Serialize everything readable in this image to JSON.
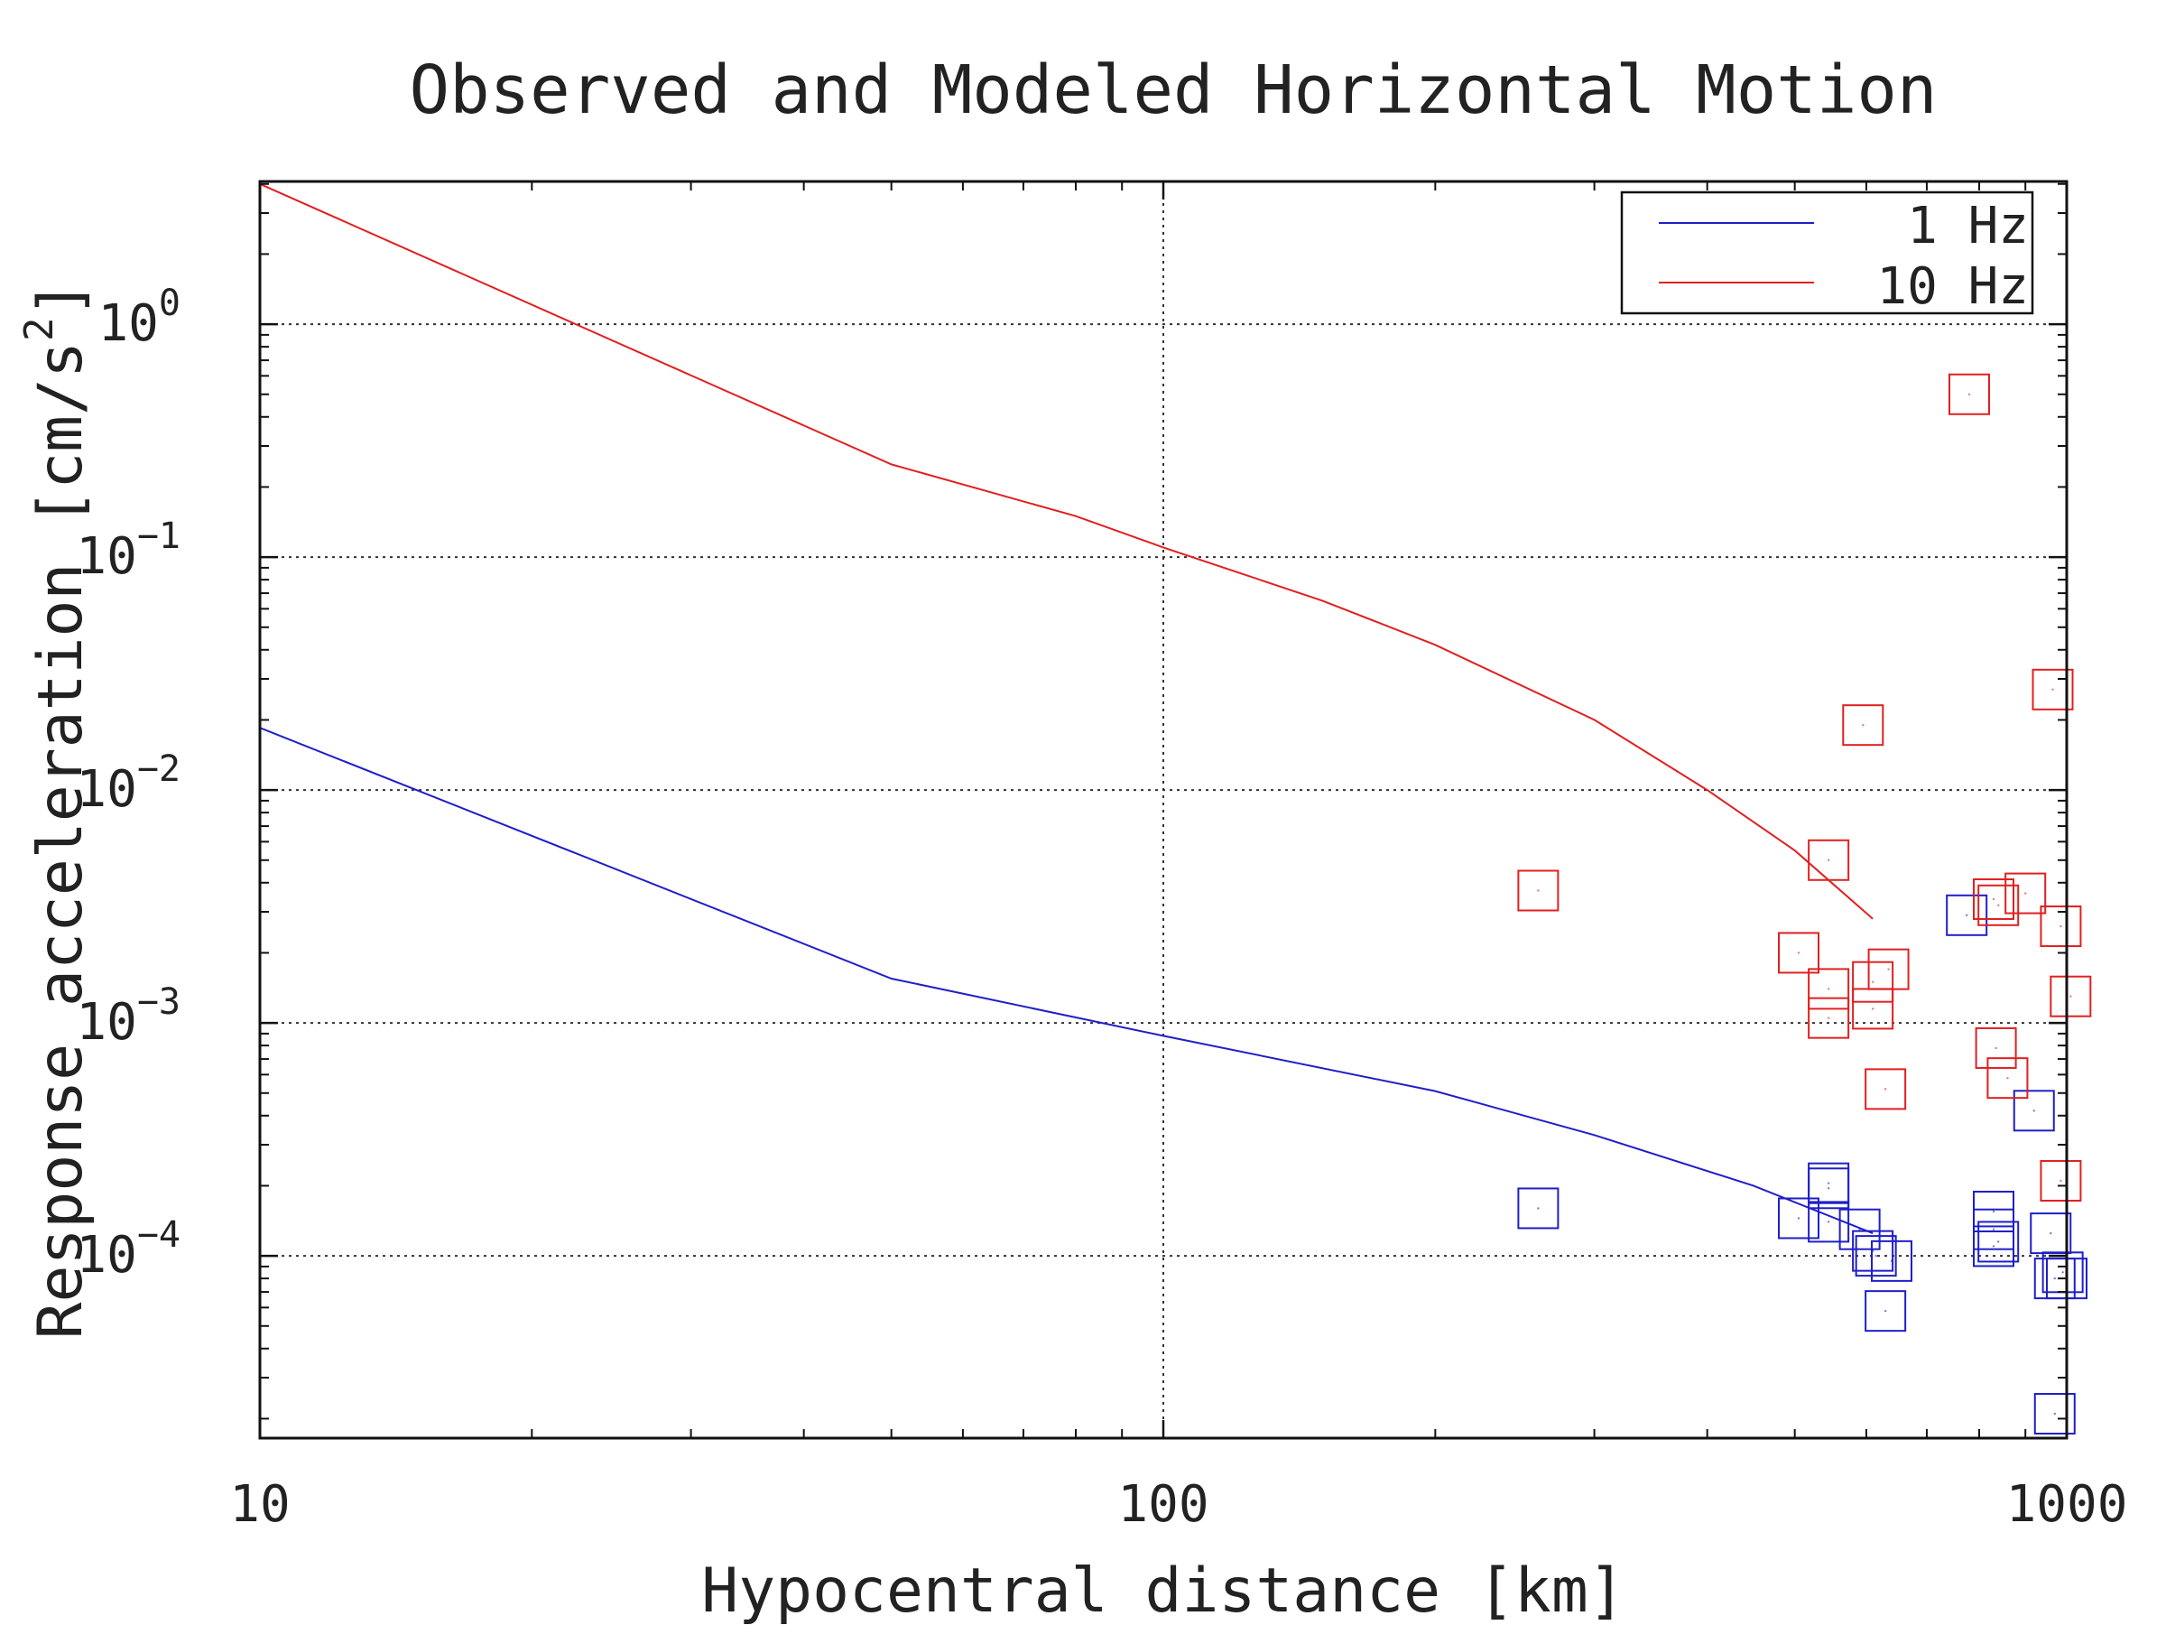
{
  "chart_data": {
    "type": "scatter",
    "title": "Observed and Modeled Horizontal Motion",
    "xlabel": "Hypocentral distance [km]",
    "ylabel_text": "Response acceleration [cm/s",
    "ylabel_sup": "2",
    "ylabel_close": "]",
    "x_scale": "log",
    "y_scale": "log",
    "xlim": [
      10,
      1000
    ],
    "ylim": [
      1.65e-05,
      4.1
    ],
    "grid": true,
    "legend_position": "top-right",
    "x_ticks": [
      {
        "value": 10,
        "label": "10"
      },
      {
        "value": 100,
        "label": "100"
      },
      {
        "value": 1000,
        "label": "1000"
      }
    ],
    "y_ticks": [
      {
        "value": 1,
        "base": "10",
        "exp": "0"
      },
      {
        "value": 0.1,
        "base": "10",
        "exp": "−1"
      },
      {
        "value": 0.01,
        "base": "10",
        "exp": "−2"
      },
      {
        "value": 0.001,
        "base": "10",
        "exp": "−3"
      },
      {
        "value": 0.0001,
        "base": "10",
        "exp": "−4"
      }
    ],
    "series": [
      {
        "name": "1 Hz",
        "color": "#1f1fc8",
        "line": [
          [
            10,
            0.0185
          ],
          [
            50,
            0.00155
          ],
          [
            100,
            0.00088
          ],
          [
            200,
            0.00051
          ],
          [
            300,
            0.00033
          ],
          [
            450,
            0.0002
          ],
          [
            610,
            0.000125
          ]
        ],
        "observed": [
          [
            260,
            0.00016
          ],
          [
            505,
            0.000145
          ],
          [
            545,
            0.000205
          ],
          [
            545,
            0.000195
          ],
          [
            545,
            0.00014
          ],
          [
            590,
            0.00013
          ],
          [
            610,
            0.000105
          ],
          [
            615,
            0.0001
          ],
          [
            640,
            9.5e-05
          ],
          [
            630,
            5.8e-05
          ],
          [
            775,
            0.0029
          ],
          [
            830,
            0.000155
          ],
          [
            830,
            0.00013
          ],
          [
            830,
            0.00011
          ],
          [
            840,
            0.000115
          ],
          [
            920,
            0.00042
          ],
          [
            960,
            0.000125
          ],
          [
            970,
            8e-05
          ],
          [
            990,
            8.5e-05
          ],
          [
            1000,
            8e-05
          ],
          [
            970,
            2.1e-05
          ]
        ]
      },
      {
        "name": "10 Hz",
        "color": "#e02020",
        "line": [
          [
            10,
            4.0
          ],
          [
            50,
            0.25
          ],
          [
            80,
            0.15
          ],
          [
            100,
            0.11
          ],
          [
            150,
            0.065
          ],
          [
            200,
            0.042
          ],
          [
            300,
            0.02
          ],
          [
            400,
            0.01
          ],
          [
            500,
            0.0055
          ],
          [
            610,
            0.0028
          ]
        ],
        "observed": [
          [
            260,
            0.0037
          ],
          [
            505,
            0.002
          ],
          [
            545,
            0.005
          ],
          [
            545,
            0.0014
          ],
          [
            545,
            0.00105
          ],
          [
            595,
            0.019
          ],
          [
            610,
            0.0015
          ],
          [
            610,
            0.00115
          ],
          [
            635,
            0.0017
          ],
          [
            630,
            0.00052
          ],
          [
            780,
            0.5
          ],
          [
            830,
            0.0034
          ],
          [
            840,
            0.0032
          ],
          [
            835,
            0.00078
          ],
          [
            860,
            0.00058
          ],
          [
            900,
            0.0036
          ],
          [
            965,
            0.027
          ],
          [
            985,
            0.0026
          ],
          [
            985,
            0.00021
          ],
          [
            1010,
            0.0013
          ]
        ]
      }
    ]
  }
}
